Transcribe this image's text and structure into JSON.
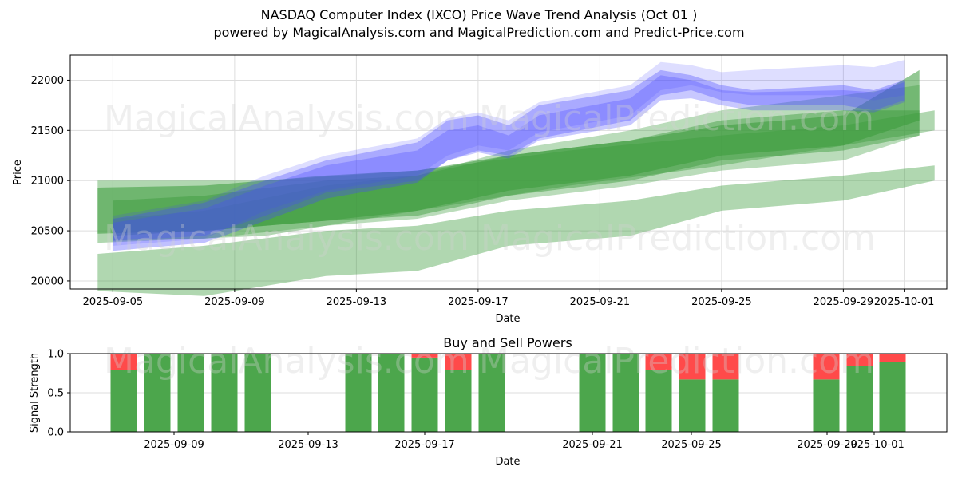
{
  "header": {
    "title": "NASDAQ Computer Index (IXCO) Price Wave Trend Analysis (Oct 01 )",
    "subtitle": "powered by MagicalAnalysis.com and MagicalPrediction.com and Predict-Price.com"
  },
  "watermarks": [
    "MagicalAnalysis.com",
    "MagicalPrediction.com"
  ],
  "colors": {
    "blue_band": "#4a4aff",
    "green_band": "#3a9a3a",
    "buy": "#4ca64c",
    "sell": "#ff4a4a",
    "grid": "#dddddd"
  },
  "chart_data": [
    {
      "type": "area",
      "title": "",
      "xlabel": "Date",
      "ylabel": "Price",
      "ylim": [
        19920,
        22250
      ],
      "xlim": [
        "2025-09-03.6",
        "2025-10-02.4"
      ],
      "grid": true,
      "x_ticks": [
        "2025-09-05",
        "2025-09-09",
        "2025-09-13",
        "2025-09-17",
        "2025-09-21",
        "2025-09-25",
        "2025-09-29",
        "2025-10-01"
      ],
      "y_ticks": [
        20000,
        20500,
        21000,
        21500,
        22000
      ],
      "blue_bands": [
        {
          "name": "wave-blue-1",
          "x": [
            "2025-09-05",
            "2025-09-08",
            "2025-09-10",
            "2025-09-12",
            "2025-09-15",
            "2025-09-16",
            "2025-09-17",
            "2025-09-18",
            "2025-09-19",
            "2025-09-22",
            "2025-09-23",
            "2025-09-24",
            "2025-09-25",
            "2025-09-26",
            "2025-09-29",
            "2025-09-30",
            "2025-10-01"
          ],
          "upper": [
            20620,
            20780,
            21000,
            21200,
            21380,
            21600,
            21650,
            21550,
            21750,
            21900,
            22100,
            22050,
            21950,
            21900,
            21950,
            21900,
            22000
          ],
          "lower": [
            20300,
            20380,
            20600,
            20820,
            20980,
            21200,
            21300,
            21250,
            21420,
            21600,
            21850,
            21900,
            21800,
            21750,
            21750,
            21700,
            21800
          ]
        },
        {
          "name": "wave-blue-2",
          "x": [
            "2025-09-05",
            "2025-09-08",
            "2025-09-10",
            "2025-09-12",
            "2025-09-15",
            "2025-09-16",
            "2025-09-17",
            "2025-09-18",
            "2025-09-19",
            "2025-09-22",
            "2025-09-23",
            "2025-09-24",
            "2025-09-25",
            "2025-09-26",
            "2025-09-29",
            "2025-09-30",
            "2025-10-01"
          ],
          "upper": [
            20580,
            20720,
            20950,
            21150,
            21300,
            21500,
            21550,
            21450,
            21650,
            21820,
            22050,
            22000,
            21900,
            21880,
            21900,
            21880,
            21980
          ],
          "lower": [
            20400,
            20450,
            20650,
            20880,
            21000,
            21200,
            21280,
            21220,
            21400,
            21550,
            21800,
            21820,
            21750,
            21700,
            21700,
            21680,
            21780
          ]
        },
        {
          "name": "wave-blue-3",
          "x": [
            "2025-09-05",
            "2025-09-08",
            "2025-09-10",
            "2025-09-12",
            "2025-09-15",
            "2025-09-16",
            "2025-09-17",
            "2025-09-18",
            "2025-09-19",
            "2025-09-22",
            "2025-09-23",
            "2025-09-24",
            "2025-09-25",
            "2025-09-26",
            "2025-09-29",
            "2025-09-30",
            "2025-10-01"
          ],
          "upper": [
            20650,
            20800,
            21050,
            21250,
            21420,
            21620,
            21680,
            21600,
            21780,
            21950,
            22180,
            22150,
            22080,
            22100,
            22150,
            22130,
            22200
          ],
          "lower": [
            20350,
            20420,
            20700,
            20900,
            21050,
            21250,
            21350,
            21300,
            21480,
            21650,
            21900,
            21950,
            21880,
            21850,
            21850,
            21800,
            21850
          ]
        }
      ],
      "green_bands": [
        {
          "name": "wave-green-flat-1",
          "x": [
            "2025-09-04.5",
            "2025-09-10",
            "2025-09-15",
            "2025-09-20",
            "2025-09-25",
            "2025-09-29",
            "2025-10-02"
          ],
          "upper": [
            21000,
            21000,
            21100,
            21300,
            21450,
            21550,
            21700
          ],
          "lower": [
            20380,
            20450,
            20700,
            20950,
            21150,
            21350,
            21500
          ]
        },
        {
          "name": "wave-green-flat-2",
          "x": [
            "2025-09-04.5",
            "2025-09-08",
            "2025-09-12",
            "2025-09-15",
            "2025-09-18",
            "2025-09-22",
            "2025-09-25",
            "2025-09-29",
            "2025-10-01.5"
          ],
          "upper": [
            20930,
            20950,
            21050,
            21100,
            21250,
            21400,
            21550,
            21650,
            22100
          ],
          "lower": [
            20470,
            20500,
            20600,
            20700,
            20900,
            21050,
            21250,
            21350,
            21600
          ]
        },
        {
          "name": "wave-green-3",
          "x": [
            "2025-09-05",
            "2025-09-08",
            "2025-09-12",
            "2025-09-15",
            "2025-09-18",
            "2025-09-22",
            "2025-09-25",
            "2025-09-29",
            "2025-10-01.5"
          ],
          "upper": [
            20800,
            20850,
            21000,
            21050,
            21250,
            21400,
            21600,
            21700,
            21700
          ],
          "lower": [
            20450,
            20500,
            20600,
            20650,
            20850,
            21000,
            21200,
            21300,
            21450
          ]
        },
        {
          "name": "wave-green-4",
          "x": [
            "2025-09-05",
            "2025-09-08",
            "2025-09-12",
            "2025-09-15",
            "2025-09-18",
            "2025-09-22",
            "2025-09-25",
            "2025-09-29",
            "2025-10-01.5"
          ],
          "upper": [
            20620,
            20700,
            20950,
            21050,
            21300,
            21500,
            21700,
            21850,
            21950
          ],
          "lower": [
            20400,
            20420,
            20550,
            20620,
            20800,
            20950,
            21100,
            21200,
            21450
          ]
        },
        {
          "name": "wave-green-low",
          "x": [
            "2025-09-04.5",
            "2025-09-08",
            "2025-09-12",
            "2025-09-15",
            "2025-09-18",
            "2025-09-22",
            "2025-09-25",
            "2025-09-29",
            "2025-10-02"
          ],
          "upper": [
            20270,
            20350,
            20500,
            20550,
            20700,
            20800,
            20950,
            21050,
            21150
          ],
          "lower": [
            19900,
            19850,
            20050,
            20100,
            20350,
            20450,
            20700,
            20800,
            21000
          ]
        }
      ]
    },
    {
      "type": "bar",
      "title": "Buy and Sell Powers",
      "xlabel": "Date",
      "ylabel": "Signal Strength",
      "ylim": [
        0.0,
        1.0
      ],
      "y_ticks": [
        "0.0",
        "0.5",
        "1.0"
      ],
      "x_ticks": [
        "2025-09-09",
        "2025-09-13",
        "2025-09-17",
        "2025-09-21",
        "2025-09-25",
        "2025-09-29",
        "2025-10-01"
      ],
      "grid": true,
      "categories": [
        "2025-09-08",
        "2025-09-09",
        "2025-09-10",
        "2025-09-11",
        "2025-09-12",
        "2025-09-15",
        "2025-09-16",
        "2025-09-17",
        "2025-09-18",
        "2025-09-19",
        "2025-09-22",
        "2025-09-23",
        "2025-09-24",
        "2025-09-25",
        "2025-09-26",
        "2025-09-29",
        "2025-09-30",
        "2025-10-01"
      ],
      "series": [
        {
          "name": "Buy",
          "values": [
            0.79,
            1.0,
            1.0,
            1.0,
            1.0,
            1.0,
            1.0,
            0.95,
            0.79,
            1.0,
            1.0,
            1.0,
            0.79,
            0.67,
            0.67,
            0.67,
            0.84,
            0.89
          ]
        },
        {
          "name": "Sell",
          "values": [
            0.21,
            0.0,
            0.0,
            0.0,
            0.0,
            0.0,
            0.0,
            0.05,
            0.21,
            0.0,
            0.0,
            0.0,
            0.21,
            0.33,
            0.33,
            0.33,
            0.16,
            0.11
          ]
        }
      ]
    }
  ]
}
